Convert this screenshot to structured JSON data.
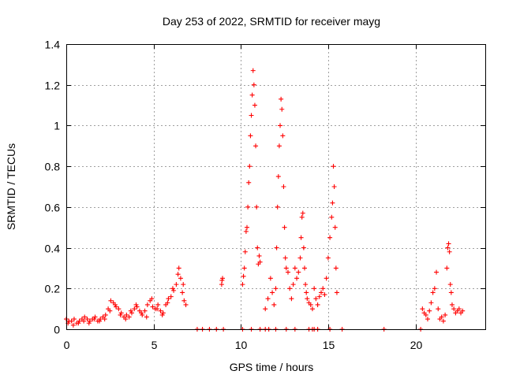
{
  "chart_data": {
    "type": "scatter",
    "title": "Day 253 of 2022, SRMTID for receiver mayg",
    "xlabel": "GPS time / hours",
    "ylabel": "SRMTID / TECUs",
    "xlim": [
      0,
      24
    ],
    "ylim": [
      0,
      1.4
    ],
    "xticks": [
      0,
      5,
      10,
      15,
      20
    ],
    "xtick_labels": [
      "0",
      "5",
      "10",
      "15",
      "20"
    ],
    "yticks": [
      0,
      0.2,
      0.4,
      0.6,
      0.8,
      1.0,
      1.2,
      1.4
    ],
    "ytick_labels": [
      "0",
      "0.2",
      "0.4",
      "0.6",
      "0.8",
      "1",
      "1.2",
      "1.4"
    ],
    "grid": true,
    "marker": "plus",
    "color": "#ff0000",
    "series": [
      {
        "name": "SRMTID",
        "x": [
          0.0,
          0.15,
          0.3,
          0.45,
          0.6,
          0.75,
          0.9,
          1.05,
          1.2,
          1.35,
          1.5,
          1.65,
          1.8,
          1.95,
          2.1,
          2.25,
          2.4,
          2.55,
          2.7,
          2.85,
          3.0,
          3.15,
          3.3,
          3.45,
          3.6,
          3.75,
          3.9,
          4.05,
          4.2,
          4.35,
          4.5,
          4.65,
          4.8,
          4.95,
          5.1,
          5.25,
          5.4,
          5.55,
          5.7,
          5.85,
          6.0,
          6.15,
          6.3,
          6.45,
          6.55,
          6.65,
          6.75,
          6.85,
          0.1,
          0.4,
          0.7,
          1.0,
          1.3,
          1.6,
          1.9,
          2.2,
          2.5,
          2.8,
          3.1,
          3.4,
          3.7,
          4.0,
          4.3,
          4.6,
          4.9,
          5.2,
          5.5,
          5.8,
          6.1,
          6.4,
          6.7,
          8.9,
          8.92,
          8.95,
          10.1,
          10.15,
          10.2,
          10.25,
          10.3,
          10.35,
          10.4,
          10.45,
          10.5,
          10.55,
          10.6,
          10.65,
          10.7,
          10.75,
          10.8,
          10.85,
          10.9,
          10.95,
          11.0,
          11.05,
          11.1,
          11.4,
          11.55,
          11.7,
          11.8,
          11.9,
          12.0,
          12.05,
          12.1,
          12.15,
          12.2,
          12.25,
          12.3,
          12.35,
          12.4,
          12.45,
          12.5,
          12.55,
          12.6,
          12.7,
          12.8,
          12.9,
          13.0,
          13.1,
          13.2,
          13.3,
          13.4,
          13.45,
          13.5,
          13.55,
          13.6,
          13.65,
          13.7,
          13.75,
          13.8,
          13.9,
          14.0,
          14.1,
          14.2,
          14.3,
          14.4,
          14.5,
          14.6,
          14.7,
          14.8,
          14.9,
          15.0,
          15.1,
          15.2,
          15.25,
          15.3,
          15.35,
          15.4,
          15.45,
          15.5,
          20.4,
          20.5,
          20.6,
          20.7,
          20.8,
          20.9,
          21.0,
          21.1,
          21.2,
          21.3,
          21.4,
          21.5,
          21.6,
          21.7,
          21.8,
          21.85,
          21.9,
          21.95,
          22.0,
          22.05,
          22.1,
          22.2,
          22.3,
          22.4,
          22.5,
          22.6,
          22.7,
          7.5,
          7.8,
          8.2,
          8.6,
          9.0,
          10.1,
          10.6,
          11.1,
          11.4,
          11.6,
          12.0,
          12.6,
          13.1,
          13.9,
          14.1,
          14.2,
          14.4,
          15.1,
          15.8,
          18.2,
          20.3
        ],
        "y": [
          0.05,
          0.04,
          0.04,
          0.05,
          0.03,
          0.04,
          0.05,
          0.06,
          0.05,
          0.04,
          0.05,
          0.06,
          0.04,
          0.05,
          0.06,
          0.07,
          0.1,
          0.14,
          0.13,
          0.11,
          0.1,
          0.08,
          0.06,
          0.07,
          0.06,
          0.08,
          0.1,
          0.11,
          0.09,
          0.07,
          0.09,
          0.12,
          0.14,
          0.11,
          0.1,
          0.12,
          0.09,
          0.08,
          0.12,
          0.15,
          0.16,
          0.19,
          0.22,
          0.3,
          0.25,
          0.18,
          0.14,
          0.12,
          0.03,
          0.02,
          0.03,
          0.04,
          0.03,
          0.05,
          0.04,
          0.05,
          0.09,
          0.12,
          0.07,
          0.05,
          0.09,
          0.12,
          0.08,
          0.06,
          0.15,
          0.1,
          0.07,
          0.13,
          0.2,
          0.27,
          0.22,
          0.22,
          0.24,
          0.25,
          0.22,
          0.26,
          0.3,
          0.38,
          0.48,
          0.5,
          0.6,
          0.72,
          0.8,
          0.95,
          1.05,
          1.15,
          1.27,
          1.2,
          1.1,
          0.9,
          0.6,
          0.4,
          0.32,
          0.36,
          0.33,
          0.1,
          0.15,
          0.25,
          0.18,
          0.12,
          0.2,
          0.4,
          0.6,
          0.75,
          0.9,
          1.0,
          1.13,
          1.08,
          0.95,
          0.7,
          0.5,
          0.35,
          0.3,
          0.28,
          0.2,
          0.15,
          0.22,
          0.3,
          0.25,
          0.28,
          0.35,
          0.45,
          0.55,
          0.57,
          0.4,
          0.3,
          0.22,
          0.18,
          0.15,
          0.13,
          0.12,
          0.1,
          0.2,
          0.15,
          0.12,
          0.16,
          0.18,
          0.2,
          0.17,
          0.25,
          0.35,
          0.45,
          0.55,
          0.62,
          0.8,
          0.7,
          0.5,
          0.3,
          0.18,
          0.1,
          0.08,
          0.07,
          0.05,
          0.09,
          0.13,
          0.18,
          0.2,
          0.28,
          0.1,
          0.05,
          0.06,
          0.04,
          0.07,
          0.3,
          0.4,
          0.42,
          0.38,
          0.22,
          0.18,
          0.12,
          0.1,
          0.08,
          0.09,
          0.1,
          0.08,
          0.09,
          0,
          0,
          0,
          0,
          0,
          0,
          0,
          0,
          0,
          0,
          0,
          0,
          0,
          0,
          0,
          0,
          0,
          0,
          0,
          0,
          0
        ]
      }
    ]
  }
}
